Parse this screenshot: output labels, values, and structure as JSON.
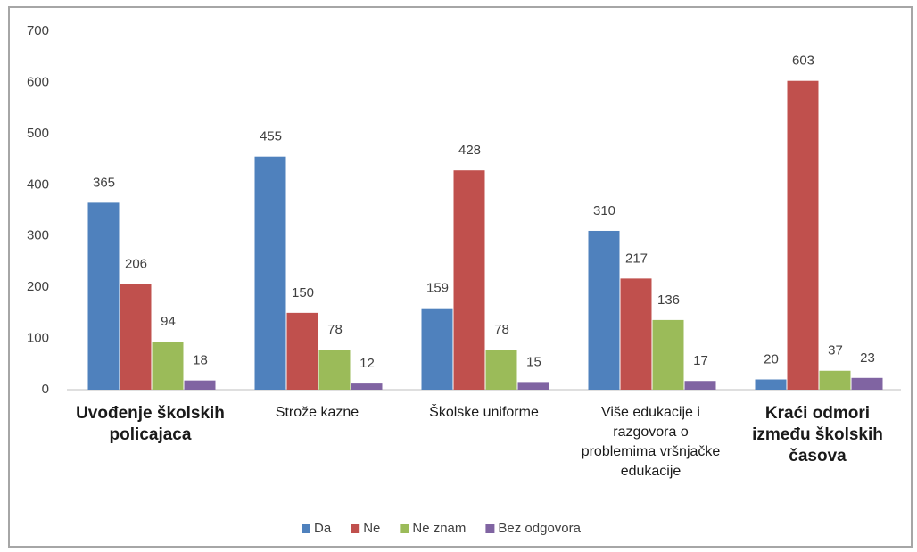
{
  "chart_data": {
    "type": "bar",
    "categories": [
      "Uvođenje školskih policajaca",
      "Strože kazne",
      "Školske uniforme",
      "Više edukacije i razgovora o problemima vršnjačke edukacije",
      "Kraći odmori između školskih časova"
    ],
    "series": [
      {
        "name": "Da",
        "color": "#4f81bd",
        "values": [
          365,
          455,
          159,
          310,
          20
        ]
      },
      {
        "name": "Ne",
        "color": "#c0504d",
        "values": [
          206,
          150,
          428,
          217,
          603
        ]
      },
      {
        "name": "Ne znam",
        "color": "#9bbb59",
        "values": [
          94,
          78,
          78,
          136,
          37
        ]
      },
      {
        "name": "Bez odgovora",
        "color": "#8064a2",
        "values": [
          18,
          12,
          15,
          17,
          23
        ]
      }
    ],
    "ylim": [
      0,
      700
    ],
    "yticks": [
      0,
      100,
      200,
      300,
      400,
      500,
      600,
      700
    ],
    "legend": "bottom"
  }
}
